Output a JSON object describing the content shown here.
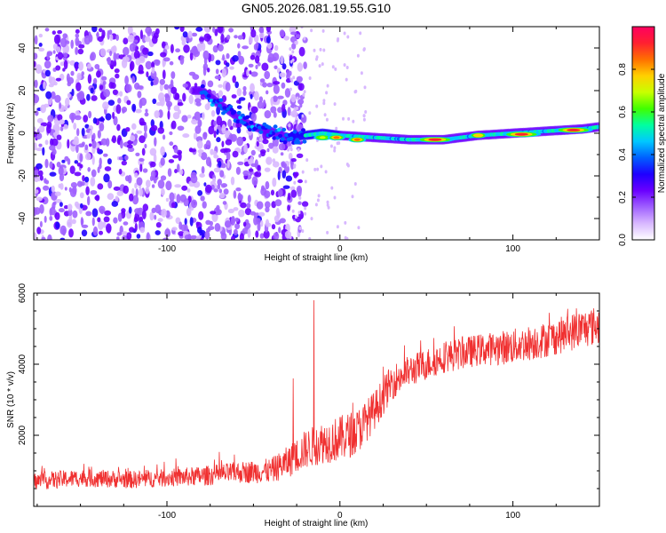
{
  "figure_title": "GN05.2026.081.19.55.G10",
  "chart_data": [
    {
      "type": "heatmap",
      "title": "GN05.2026.081.19.55.G10",
      "xlabel": "Height of straight line (km)",
      "ylabel": "Frequency (Hz)",
      "xlim": [
        -177,
        150
      ],
      "ylim": [
        -50,
        50
      ],
      "xticks": [
        -100,
        0,
        100
      ],
      "yticks": [
        -40,
        -20,
        0,
        20,
        40
      ],
      "colorbar": {
        "label": "Normalized spectral amplitude",
        "range": [
          0,
          1
        ],
        "ticks": [
          0.0,
          0.2,
          0.4,
          0.6,
          0.8
        ],
        "tick_labels": [
          "0.0",
          "0.2",
          "0.4",
          "0.6",
          "0.8"
        ],
        "colormap": [
          "#ffffff",
          "#d8b8ff",
          "#a060ff",
          "#6a00ff",
          "#1e00ff",
          "#0060ff",
          "#00c8ff",
          "#00ffa0",
          "#40ff00",
          "#c8ff00",
          "#ffd000",
          "#ff7000",
          "#ff2030",
          "#ff0060"
        ]
      },
      "trace": {
        "description": "frequency ridge vs height",
        "x": [
          -80,
          -70,
          -60,
          -50,
          -40,
          -30,
          -20,
          -10,
          0,
          20,
          40,
          60,
          80,
          100,
          120,
          140,
          150
        ],
        "y": [
          20,
          14,
          8,
          3,
          1,
          -2,
          -1,
          0,
          -1,
          -2,
          -3,
          -3,
          -1,
          0,
          1,
          2,
          3
        ],
        "peaks": [
          {
            "x": -55,
            "y": 5,
            "amp": 0.35
          },
          {
            "x": -40,
            "y": 0,
            "amp": 0.4
          },
          {
            "x": -10,
            "y": -2,
            "amp": 0.7
          },
          {
            "x": -2,
            "y": -2,
            "amp": 0.85
          },
          {
            "x": 10,
            "y": -3,
            "amp": 0.85
          },
          {
            "x": 55,
            "y": -3,
            "amp": 0.95
          },
          {
            "x": 80,
            "y": -1,
            "amp": 0.8
          },
          {
            "x": 105,
            "y": -0.5,
            "amp": 0.95
          },
          {
            "x": 135,
            "y": 1.5,
            "amp": 0.95
          }
        ],
        "noise_region_x": [
          -177,
          -30
        ]
      }
    },
    {
      "type": "line",
      "xlabel": "Height of straight line (km)",
      "ylabel": "SNR (10 * v/v)",
      "xlim": [
        -177,
        150
      ],
      "ylim": [
        0,
        6000
      ],
      "xticks": [
        -100,
        0,
        100
      ],
      "yticks": [
        2000,
        4000,
        6000
      ],
      "color": "#f03030",
      "series": [
        {
          "name": "SNR",
          "x": [
            -177,
            -150,
            -120,
            -100,
            -80,
            -60,
            -40,
            -30,
            -20,
            -10,
            0,
            10,
            20,
            30,
            40,
            50,
            60,
            80,
            100,
            120,
            140,
            150
          ],
          "y": [
            700,
            800,
            750,
            800,
            850,
            950,
            1000,
            1250,
            1600,
            1800,
            1900,
            2100,
            2700,
            3500,
            3800,
            4000,
            4200,
            4400,
            4500,
            4700,
            5000,
            5100
          ],
          "noise_amplitude": [
            250,
            250,
            250,
            250,
            280,
            300,
            350,
            450,
            550,
            600,
            650,
            650,
            550,
            500,
            450,
            450,
            450,
            450,
            500,
            500,
            550,
            550
          ],
          "spikes": [
            {
              "x": -15,
              "y": 5800
            },
            {
              "x": -27,
              "y": 3600
            }
          ]
        }
      ]
    }
  ]
}
